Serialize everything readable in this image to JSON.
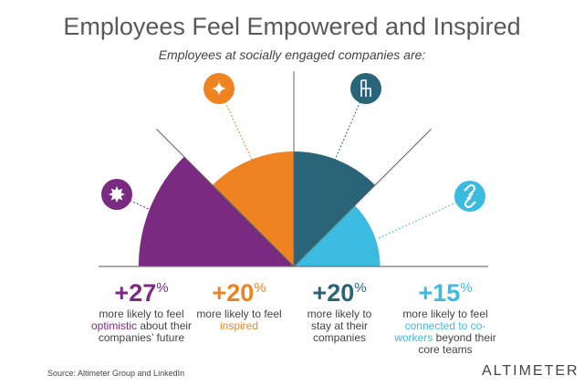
{
  "title": "Employees Feel Empowered and Inspired",
  "subtitle": "Employees at socially engaged companies are:",
  "source": "Source: Altimeter Group and LinkedIn",
  "logo": "ALTIMETER",
  "chart_data": {
    "type": "polar-area",
    "title": "Employees Feel Empowered and Inspired",
    "categories": [
      "optimistic",
      "inspired",
      "stay",
      "connected"
    ],
    "values": [
      27,
      20,
      20,
      15
    ],
    "unit": "%",
    "colors": [
      "#7b2a82",
      "#ef8321",
      "#2a6478",
      "#3cbbe0"
    ],
    "icons": [
      "starburst-icon",
      "sparkle-icon",
      "chair-icon",
      "link-icon"
    ]
  },
  "stats": [
    {
      "value": "+27",
      "pct": "%",
      "pre": "more likely to feel",
      "hl": "optimistic",
      "post": " about their companies’ future"
    },
    {
      "value": "+20",
      "pct": "%",
      "pre": "more likely to feel ",
      "hl": "inspired",
      "post": ""
    },
    {
      "value": "+20",
      "pct": "%",
      "pre": "more likely to stay at their companies",
      "hl": "",
      "post": ""
    },
    {
      "value": "+15",
      "pct": "%",
      "pre": "more likely to feel",
      "hl": "connected to co-workers",
      "post": " beyond their core teams"
    }
  ]
}
